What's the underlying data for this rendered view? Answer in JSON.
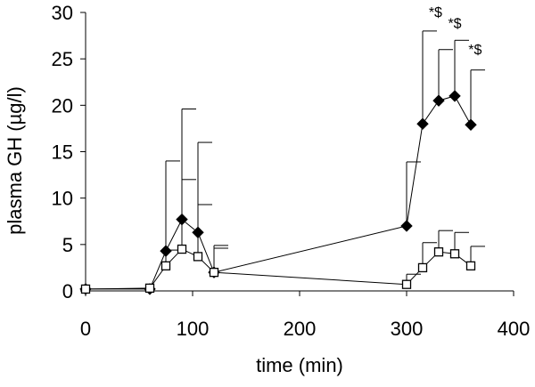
{
  "chart_data": {
    "type": "line",
    "title": "",
    "xlabel": "time (min)",
    "ylabel": "plasma GH (µg/l)",
    "xlim": [
      0,
      400
    ],
    "ylim": [
      0,
      30
    ],
    "xticks": [
      0,
      100,
      200,
      300,
      400
    ],
    "yticks": [
      0,
      5,
      10,
      15,
      20,
      25,
      30
    ],
    "grid": false,
    "legend": "none",
    "series": [
      {
        "marker": "diamond-filled",
        "color": "#000000",
        "x": [
          0,
          60,
          75,
          90,
          105,
          120,
          300,
          315,
          330,
          345,
          360
        ],
        "y": [
          0.2,
          0.2,
          4.3,
          7.7,
          6.3,
          2.0,
          7.0,
          18.0,
          20.5,
          21.0,
          17.9
        ],
        "error_upper": [
          0,
          0,
          14.0,
          19.6,
          16.0,
          4.6,
          13.9,
          28.0,
          26.0,
          27.0,
          23.8
        ]
      },
      {
        "marker": "square-open",
        "color": "#000000",
        "x": [
          0,
          60,
          75,
          90,
          105,
          120,
          300,
          315,
          330,
          345,
          360
        ],
        "y": [
          0.2,
          0.3,
          2.7,
          4.5,
          3.7,
          2.0,
          0.7,
          2.5,
          4.2,
          4.0,
          2.7
        ],
        "error_upper": [
          0,
          0,
          4.4,
          12.0,
          9.3,
          4.9,
          1.8,
          5.2,
          6.5,
          6.3,
          4.8
        ]
      }
    ],
    "annotations": [
      {
        "text": "*$",
        "x": 327,
        "y": 29.5
      },
      {
        "text": "*$",
        "x": 345,
        "y": 28.3
      },
      {
        "text": "*$",
        "x": 364,
        "y": 25.5
      }
    ]
  }
}
